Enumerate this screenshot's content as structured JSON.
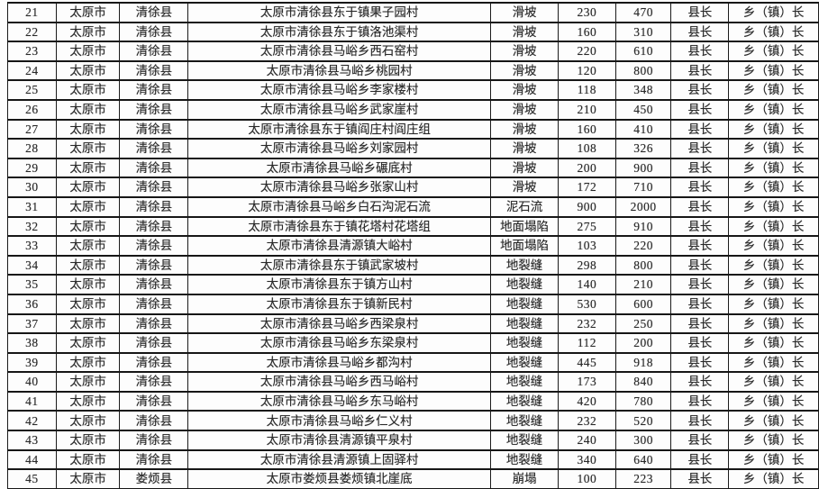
{
  "document": {
    "description_labels": {
      "city": "太原市",
      "county_main": "清徐县",
      "county_last": "娄烦县",
      "responsible_county": "县长",
      "responsible_township": "乡（镇）长"
    },
    "colors": {
      "background": "#fdfdfd",
      "border": "#1b1b1b",
      "text": "#2a2a2a"
    },
    "row_number_range": {
      "first": "21",
      "last": "45"
    }
  },
  "table": {
    "column_semantics": [
      "row-number",
      "city",
      "county",
      "hazard-site",
      "hazard-type",
      "numeric-value-1",
      "numeric-value-2",
      "county-leader",
      "township-leader"
    ],
    "rows": [
      [
        "21",
        "太原市",
        "清徐县",
        "太原市清徐县东于镇果子园村",
        "滑坡",
        "230",
        "470",
        "县长",
        "乡（镇）长"
      ],
      [
        "22",
        "太原市",
        "清徐县",
        "太原市清徐县东于镇洛池渠村",
        "滑坡",
        "160",
        "310",
        "县长",
        "乡（镇）长"
      ],
      [
        "23",
        "太原市",
        "清徐县",
        "太原市清徐县马峪乡西石窑村",
        "滑坡",
        "220",
        "610",
        "县长",
        "乡（镇）长"
      ],
      [
        "24",
        "太原市",
        "清徐县",
        "太原市清徐县马峪乡桃园村",
        "滑坡",
        "120",
        "800",
        "县长",
        "乡（镇）长"
      ],
      [
        "25",
        "太原市",
        "清徐县",
        "太原市清徐县马峪乡李家楼村",
        "滑坡",
        "118",
        "348",
        "县长",
        "乡（镇）长"
      ],
      [
        "26",
        "太原市",
        "清徐县",
        "太原市清徐县马峪乡武家崖村",
        "滑坡",
        "210",
        "450",
        "县长",
        "乡（镇）长"
      ],
      [
        "27",
        "太原市",
        "清徐县",
        "太原市清徐县东于镇阎庄村阎庄组",
        "滑坡",
        "160",
        "410",
        "县长",
        "乡（镇）长"
      ],
      [
        "28",
        "太原市",
        "清徐县",
        "太原市清徐县马峪乡刘家园村",
        "滑坡",
        "108",
        "326",
        "县长",
        "乡（镇）长"
      ],
      [
        "29",
        "太原市",
        "清徐县",
        "太原市清徐县马峪乡碾底村",
        "滑坡",
        "200",
        "900",
        "县长",
        "乡（镇）长"
      ],
      [
        "30",
        "太原市",
        "清徐县",
        "太原市清徐县马峪乡张家山村",
        "滑坡",
        "172",
        "710",
        "县长",
        "乡（镇）长"
      ],
      [
        "31",
        "太原市",
        "清徐县",
        "太原市清徐县马峪乡白石沟泥石流",
        "泥石流",
        "900",
        "2000",
        "县长",
        "乡（镇）长"
      ],
      [
        "32",
        "太原市",
        "清徐县",
        "太原市清徐县东于镇花塔村花塔组",
        "地面塌陷",
        "275",
        "910",
        "县长",
        "乡（镇）长"
      ],
      [
        "33",
        "太原市",
        "清徐县",
        "太原市清徐县清源镇大峪村",
        "地面塌陷",
        "103",
        "220",
        "县长",
        "乡（镇）长"
      ],
      [
        "34",
        "太原市",
        "清徐县",
        "太原市清徐县东于镇武家坡村",
        "地裂缝",
        "298",
        "800",
        "县长",
        "乡（镇）长"
      ],
      [
        "35",
        "太原市",
        "清徐县",
        "太原市清徐县东于镇方山村",
        "地裂缝",
        "140",
        "210",
        "县长",
        "乡（镇）长"
      ],
      [
        "36",
        "太原市",
        "清徐县",
        "太原市清徐县东于镇新民村",
        "地裂缝",
        "530",
        "600",
        "县长",
        "乡（镇）长"
      ],
      [
        "37",
        "太原市",
        "清徐县",
        "太原市清徐县马峪乡西梁泉村",
        "地裂缝",
        "232",
        "250",
        "县长",
        "乡（镇）长"
      ],
      [
        "38",
        "太原市",
        "清徐县",
        "太原市清徐县马峪乡东梁泉村",
        "地裂缝",
        "112",
        "200",
        "县长",
        "乡（镇）长"
      ],
      [
        "39",
        "太原市",
        "清徐县",
        "太原市清徐县马峪乡都沟村",
        "地裂缝",
        "445",
        "918",
        "县长",
        "乡（镇）长"
      ],
      [
        "40",
        "太原市",
        "清徐县",
        "太原市清徐县马峪乡西马峪村",
        "地裂缝",
        "173",
        "840",
        "县长",
        "乡（镇）长"
      ],
      [
        "41",
        "太原市",
        "清徐县",
        "太原市清徐县马峪乡东马峪村",
        "地裂缝",
        "420",
        "780",
        "县长",
        "乡（镇）长"
      ],
      [
        "42",
        "太原市",
        "清徐县",
        "太原市清徐县马峪乡仁义村",
        "地裂缝",
        "232",
        "520",
        "县长",
        "乡（镇）长"
      ],
      [
        "43",
        "太原市",
        "清徐县",
        "太原市清徐县清源镇平泉村",
        "地裂缝",
        "240",
        "300",
        "县长",
        "乡（镇）长"
      ],
      [
        "44",
        "太原市",
        "清徐县",
        "太原市清徐县清源镇上固驿村",
        "地裂缝",
        "340",
        "640",
        "县长",
        "乡（镇）长"
      ],
      [
        "45",
        "太原市",
        "娄烦县",
        "太原市娄烦县娄烦镇北崖底",
        "崩塌",
        "100",
        "223",
        "县长",
        "乡（镇）长"
      ]
    ]
  }
}
